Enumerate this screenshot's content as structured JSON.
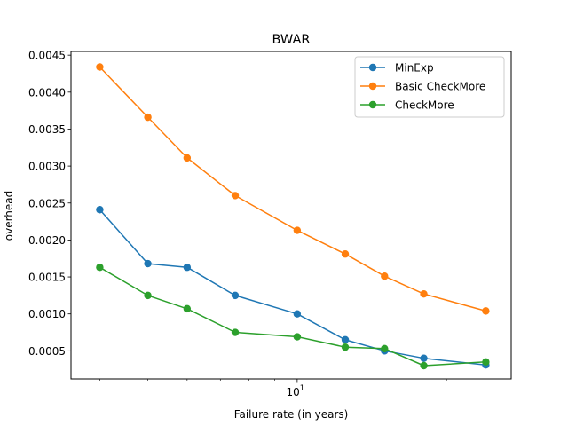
{
  "chart_data": {
    "type": "line",
    "title": "BWAR",
    "xlabel": "Failure rate (in years)",
    "ylabel": "overhead",
    "x_scale": "log",
    "x": [
      4,
      5,
      6,
      7.5,
      10,
      12.5,
      15,
      18,
      24
    ],
    "x_ticks": [
      {
        "value": 10,
        "base": "10",
        "exponent": "1"
      }
    ],
    "xlim": [
      3.5,
      27
    ],
    "y_ticks": [
      "0.0005",
      "0.0010",
      "0.0015",
      "0.0020",
      "0.0025",
      "0.0030",
      "0.0035",
      "0.0040",
      "0.0045"
    ],
    "ylim": [
      0.00012,
      0.00455
    ],
    "grid": false,
    "legend_position": "top-right",
    "series": [
      {
        "name": "MinExp",
        "color": "#1f77b4",
        "values": [
          0.00241,
          0.00168,
          0.00163,
          0.00125,
          0.001,
          0.00065,
          0.0005,
          0.0004,
          0.00031
        ]
      },
      {
        "name": "Basic CheckMore",
        "color": "#ff7f0e",
        "values": [
          0.00434,
          0.00366,
          0.00311,
          0.0026,
          0.00213,
          0.00181,
          0.00151,
          0.00127,
          0.00104
        ]
      },
      {
        "name": "CheckMore",
        "color": "#2ca02c",
        "values": [
          0.00163,
          0.00125,
          0.00107,
          0.00075,
          0.00069,
          0.00055,
          0.00053,
          0.0003,
          0.00035
        ]
      }
    ]
  }
}
